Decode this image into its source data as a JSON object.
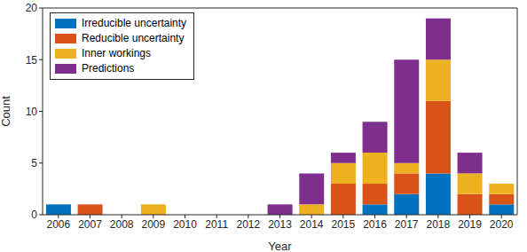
{
  "chart_data": {
    "type": "bar",
    "stacked": true,
    "x_label": "Year",
    "y_label": "Count",
    "categories": [
      "2006",
      "2007",
      "2008",
      "2009",
      "2010",
      "2011",
      "2012",
      "2013",
      "2014",
      "2015",
      "2016",
      "2017",
      "2018",
      "2019",
      "2020"
    ],
    "series": [
      {
        "name": "Irreducible uncertainty",
        "color": "#0072BD",
        "values": [
          1,
          0,
          0,
          0,
          0,
          0,
          0,
          0,
          0,
          0,
          1,
          2,
          4,
          0,
          1
        ]
      },
      {
        "name": "Reducible uncertainty",
        "color": "#D95319",
        "values": [
          0,
          1,
          0,
          0,
          0,
          0,
          0,
          0,
          0,
          3,
          2,
          2,
          7,
          2,
          1
        ]
      },
      {
        "name": "Inner workings",
        "color": "#EDB120",
        "values": [
          0,
          0,
          0,
          1,
          0,
          0,
          0,
          0,
          1,
          2,
          3,
          1,
          4,
          2,
          1
        ]
      },
      {
        "name": "Predictions",
        "color": "#7E2F8E",
        "values": [
          0,
          0,
          0,
          0,
          0,
          0,
          0,
          1,
          3,
          1,
          3,
          10,
          4,
          2,
          0
        ]
      }
    ],
    "ylim": [
      0,
      20
    ],
    "yticks": [
      0,
      5,
      10,
      15,
      20
    ],
    "grid": false,
    "legend": "upper left"
  }
}
